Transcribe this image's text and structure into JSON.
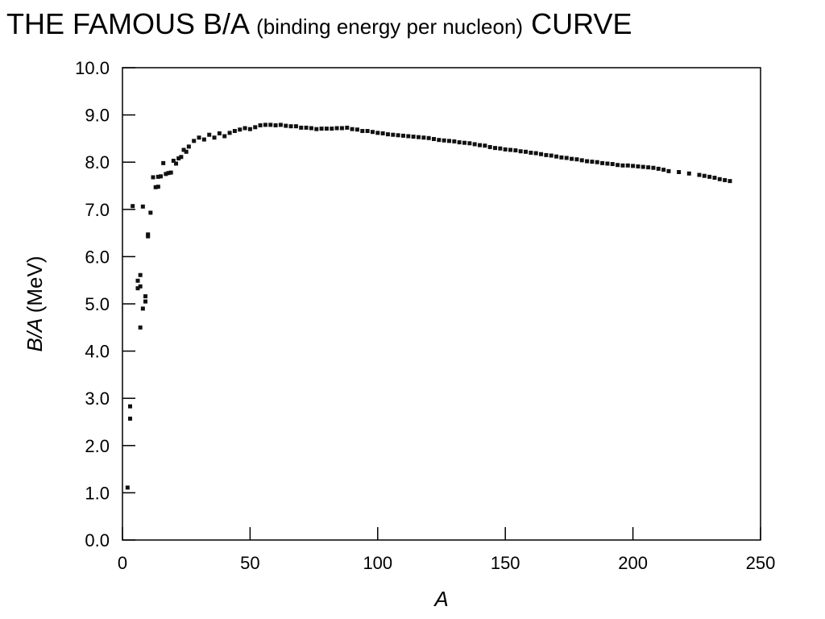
{
  "header": {
    "title_main": "THE FAMOUS B/A",
    "title_sub": "(binding energy per nucleon)",
    "title_end": "CURVE"
  },
  "chart_data": {
    "type": "scatter",
    "title": "THE FAMOUS B/A (binding energy per nucleon) CURVE",
    "xlabel": "A",
    "ylabel_italic": "B/A",
    "ylabel_unit": "(MeV)",
    "xlim": [
      0,
      250
    ],
    "ylim": [
      0,
      10
    ],
    "x_ticks": [
      "0",
      "50",
      "100",
      "150",
      "200",
      "250"
    ],
    "y_ticks": [
      "0.0",
      "1.0",
      "2.0",
      "3.0",
      "4.0",
      "5.0",
      "6.0",
      "7.0",
      "8.0",
      "9.0",
      "10.0"
    ],
    "grid": false,
    "legend": "none",
    "marker_color": "#111111",
    "series": [
      {
        "points": [
          [
            2,
            1.11
          ],
          [
            3,
            2.57
          ],
          [
            3,
            2.83
          ],
          [
            4,
            7.07
          ],
          [
            6,
            5.33
          ],
          [
            6,
            5.49
          ],
          [
            7,
            5.61
          ],
          [
            7,
            4.5
          ],
          [
            7,
            5.37
          ],
          [
            8,
            7.06
          ],
          [
            8,
            4.9
          ],
          [
            9,
            5.16
          ],
          [
            9,
            5.05
          ],
          [
            10,
            6.47
          ],
          [
            10,
            6.43
          ],
          [
            11,
            6.93
          ],
          [
            12,
            7.68
          ],
          [
            13,
            7.47
          ],
          [
            14,
            7.48
          ],
          [
            14,
            7.69
          ],
          [
            15,
            7.7
          ],
          [
            16,
            7.98
          ],
          [
            17,
            7.75
          ],
          [
            18,
            7.77
          ],
          [
            19,
            7.78
          ],
          [
            20,
            8.03
          ],
          [
            21,
            7.97
          ],
          [
            22,
            8.08
          ],
          [
            23,
            8.11
          ],
          [
            24,
            8.26
          ],
          [
            25,
            8.22
          ],
          [
            26,
            8.33
          ],
          [
            28,
            8.45
          ],
          [
            30,
            8.52
          ],
          [
            32,
            8.48
          ],
          [
            34,
            8.58
          ],
          [
            36,
            8.52
          ],
          [
            38,
            8.61
          ],
          [
            40,
            8.55
          ],
          [
            42,
            8.62
          ],
          [
            44,
            8.66
          ],
          [
            46,
            8.69
          ],
          [
            48,
            8.72
          ],
          [
            50,
            8.7
          ],
          [
            52,
            8.74
          ],
          [
            54,
            8.78
          ],
          [
            56,
            8.79
          ],
          [
            58,
            8.79
          ],
          [
            60,
            8.78
          ],
          [
            62,
            8.79
          ],
          [
            64,
            8.77
          ],
          [
            66,
            8.76
          ],
          [
            68,
            8.76
          ],
          [
            70,
            8.73
          ],
          [
            72,
            8.73
          ],
          [
            74,
            8.72
          ],
          [
            76,
            8.7
          ],
          [
            78,
            8.71
          ],
          [
            80,
            8.71
          ],
          [
            82,
            8.71
          ],
          [
            84,
            8.72
          ],
          [
            86,
            8.72
          ],
          [
            88,
            8.73
          ],
          [
            90,
            8.7
          ],
          [
            92,
            8.69
          ],
          [
            94,
            8.66
          ],
          [
            96,
            8.66
          ],
          [
            98,
            8.64
          ],
          [
            100,
            8.62
          ],
          [
            102,
            8.61
          ],
          [
            104,
            8.59
          ],
          [
            106,
            8.58
          ],
          [
            108,
            8.57
          ],
          [
            110,
            8.56
          ],
          [
            112,
            8.55
          ],
          [
            114,
            8.54
          ],
          [
            116,
            8.53
          ],
          [
            118,
            8.52
          ],
          [
            120,
            8.51
          ],
          [
            122,
            8.49
          ],
          [
            124,
            8.47
          ],
          [
            126,
            8.46
          ],
          [
            128,
            8.45
          ],
          [
            130,
            8.44
          ],
          [
            132,
            8.42
          ],
          [
            134,
            8.41
          ],
          [
            136,
            8.4
          ],
          [
            138,
            8.38
          ],
          [
            140,
            8.36
          ],
          [
            142,
            8.35
          ],
          [
            144,
            8.32
          ],
          [
            146,
            8.3
          ],
          [
            148,
            8.29
          ],
          [
            150,
            8.27
          ],
          [
            152,
            8.26
          ],
          [
            154,
            8.25
          ],
          [
            156,
            8.23
          ],
          [
            158,
            8.22
          ],
          [
            160,
            8.2
          ],
          [
            162,
            8.19
          ],
          [
            164,
            8.17
          ],
          [
            166,
            8.15
          ],
          [
            168,
            8.14
          ],
          [
            170,
            8.12
          ],
          [
            172,
            8.1
          ],
          [
            174,
            8.09
          ],
          [
            176,
            8.07
          ],
          [
            178,
            8.06
          ],
          [
            180,
            8.04
          ],
          [
            182,
            8.02
          ],
          [
            184,
            8.01
          ],
          [
            186,
            8.0
          ],
          [
            188,
            7.98
          ],
          [
            190,
            7.97
          ],
          [
            192,
            7.96
          ],
          [
            194,
            7.94
          ],
          [
            196,
            7.93
          ],
          [
            198,
            7.93
          ],
          [
            200,
            7.92
          ],
          [
            202,
            7.91
          ],
          [
            204,
            7.9
          ],
          [
            206,
            7.89
          ],
          [
            208,
            7.88
          ],
          [
            210,
            7.86
          ],
          [
            212,
            7.84
          ],
          [
            214,
            7.81
          ],
          [
            218,
            7.79
          ],
          [
            222,
            7.76
          ],
          [
            226,
            7.73
          ],
          [
            228,
            7.71
          ],
          [
            230,
            7.69
          ],
          [
            232,
            7.67
          ],
          [
            234,
            7.64
          ],
          [
            236,
            7.62
          ],
          [
            238,
            7.6
          ]
        ]
      }
    ]
  }
}
